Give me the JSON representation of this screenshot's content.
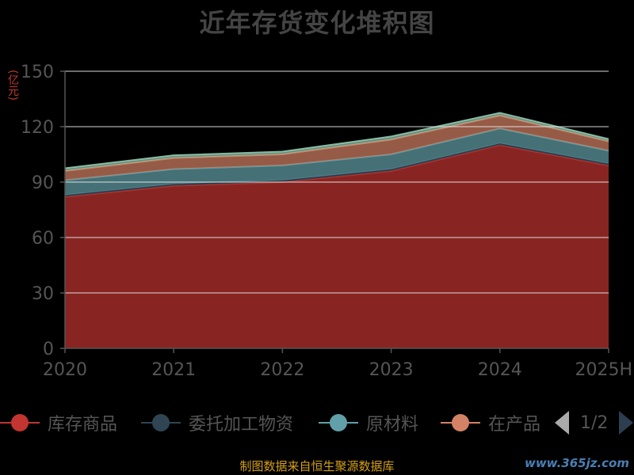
{
  "chart_data": {
    "type": "area",
    "stacked": true,
    "title": "近年存货变化堆积图",
    "ylabel": "(亿元)",
    "x": [
      "2020",
      "2021",
      "2022",
      "2023",
      "2024",
      "2025H"
    ],
    "ylim": [
      0,
      150
    ],
    "yticks": [
      0,
      30,
      60,
      90,
      120,
      150
    ],
    "grid": true,
    "legend_position": "bottom",
    "series": [
      {
        "name": "库存商品",
        "color": "#c23531",
        "values": [
          82,
          88,
          90,
          96,
          110,
          99
        ]
      },
      {
        "name": "委托加工物资",
        "color": "#2f4554",
        "values": [
          1,
          1,
          1,
          1,
          1,
          1
        ]
      },
      {
        "name": "原材料",
        "color": "#61a0a8",
        "values": [
          8,
          8,
          8,
          8,
          8,
          7
        ]
      },
      {
        "name": "在产品",
        "color": "#d48265",
        "values": [
          5,
          6,
          6,
          8,
          7,
          5
        ]
      },
      {
        "name": "",
        "color": "#91c7ae",
        "values": [
          1.5,
          1.5,
          1.5,
          1.7,
          1.5,
          1.3
        ]
      }
    ]
  },
  "legend": {
    "items": [
      "库存商品",
      "委托加工物资",
      "原材料",
      "在产品"
    ],
    "page_text": "1/2"
  },
  "source_text": "制图数据来自恒生聚源数据库",
  "watermark_text": "www.365jz.com"
}
